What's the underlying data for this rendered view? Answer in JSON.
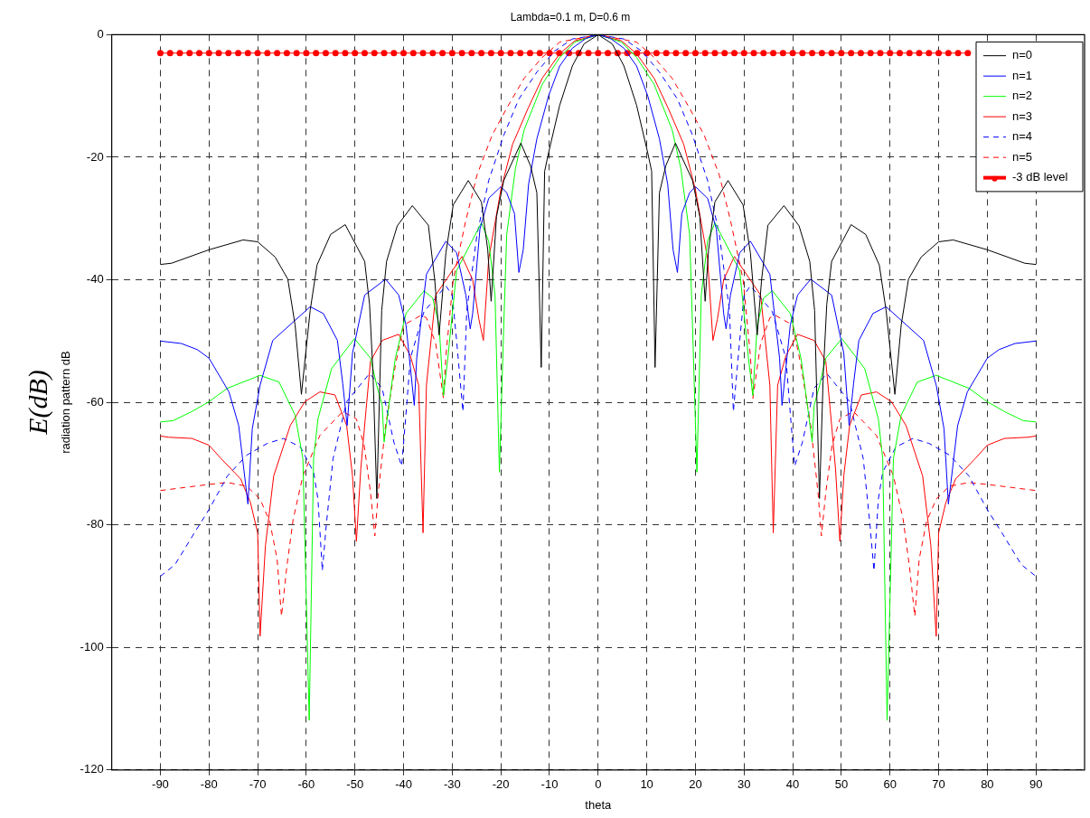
{
  "chart_data": {
    "type": "line",
    "title": "Lambda=0.1 m, D=0.6 m",
    "xlabel": "theta",
    "ylabel": "radiation pattern dB",
    "annotations": [
      "E(dB)"
    ],
    "xlim": [
      -100,
      100
    ],
    "ylim": [
      -120,
      0
    ],
    "xticks": [
      -90,
      -80,
      -70,
      -60,
      -50,
      -40,
      -30,
      -20,
      -10,
      0,
      10,
      20,
      30,
      40,
      50,
      60,
      70,
      80,
      90
    ],
    "yticks": [
      -120,
      -100,
      -80,
      -60,
      -40,
      -20,
      0
    ],
    "grid": true,
    "legend": "top right",
    "line_style": "solid",
    "marker": "none",
    "series": [
      {
        "name": "n=0",
        "color": "#000000",
        "x": [
          -90,
          -87.7,
          -80,
          -73,
          -70,
          -66.4,
          -63.8,
          -62.3,
          -61,
          -59.2,
          -57.8,
          -55,
          -52,
          -48,
          -47,
          -46.3,
          -45.5,
          -44.5,
          -43.5,
          -41.3,
          -38.2,
          -34.9,
          -33.6,
          -32.7,
          -31.3,
          -29.8,
          -26.7,
          -24,
          -22.7,
          -22,
          -20.9,
          -19.4,
          -15.9,
          -13.9,
          -12.6,
          -11.7,
          -11,
          -10.2,
          -7.9,
          -5.3,
          -2.9,
          0,
          2.9,
          5.3,
          7.9,
          10.2,
          11,
          11.7,
          12.6,
          13.9,
          15.9,
          19.4,
          20.9,
          22,
          22.7,
          24,
          26.7,
          29.8,
          31.3,
          32.7,
          33.6,
          34.9,
          38.2,
          41.3,
          43.5,
          44.5,
          45.5,
          46.3,
          47,
          48,
          52,
          55,
          57.8,
          59.2,
          61,
          62.3,
          63.8,
          66.4,
          70,
          73,
          80,
          87.7,
          90
        ],
        "values": [
          -37.5,
          -37.3,
          -35.1,
          -33.5,
          -33.8,
          -36.3,
          -39.9,
          -47.4,
          -58.7,
          -45,
          -37.6,
          -32.6,
          -31,
          -37,
          -44,
          -55,
          -75.7,
          -45,
          -37,
          -31.2,
          -27.9,
          -31.1,
          -40,
          -49,
          -35.6,
          -27.8,
          -23.8,
          -27.3,
          -35.1,
          -43.5,
          -29.7,
          -23.8,
          -17.7,
          -21.4,
          -25.8,
          -54.3,
          -22.3,
          -19.3,
          -11.5,
          -5.1,
          -1.5,
          0,
          -1.5,
          -5.1,
          -11.5,
          -19.3,
          -22.3,
          -54.3,
          -25.8,
          -21.4,
          -17.7,
          -23.8,
          -29.7,
          -43.5,
          -35.1,
          -27.3,
          -23.8,
          -27.8,
          -35.6,
          -49,
          -40,
          -31.1,
          -27.9,
          -31.2,
          -37,
          -45,
          -75.7,
          -55,
          -44,
          -37,
          -31,
          -32.6,
          -37.6,
          -45,
          -58.7,
          -47.4,
          -39.9,
          -36.3,
          -33.8,
          -33.5,
          -35.1,
          -37.3,
          -37.5
        ]
      },
      {
        "name": "n=1",
        "color": "#0000ff",
        "x": [
          -90,
          -85.7,
          -82.4,
          -80,
          -75.9,
          -73.9,
          -72,
          -71.1,
          -69.5,
          -66.9,
          -59.2,
          -56.5,
          -53.6,
          -52.5,
          -51.6,
          -50.5,
          -48,
          -43.7,
          -41,
          -39.5,
          -37.8,
          -37.3,
          -35.3,
          -31.3,
          -29.1,
          -27.2,
          -26.3,
          -25.8,
          -24.3,
          -22.5,
          -20,
          -18.8,
          -17.2,
          -16.3,
          -15.4,
          -14.3,
          -12.6,
          -10.2,
          -7.9,
          -5.3,
          -2.5,
          0,
          2.5,
          5.3,
          7.9,
          10.2,
          12.6,
          14.3,
          15.4,
          16.3,
          17.2,
          18.8,
          20,
          22.5,
          24.3,
          25.8,
          26.3,
          27.2,
          29.1,
          31.3,
          35.3,
          37.3,
          37.8,
          39.5,
          41,
          43.7,
          48,
          50.5,
          51.6,
          52.5,
          53.6,
          56.5,
          59.2,
          66.9,
          69.5,
          71.1,
          72,
          73.9,
          75.9,
          80,
          82.4,
          85.7,
          90
        ],
        "values": [
          -50,
          -50.4,
          -51.4,
          -52.8,
          -58.3,
          -63.8,
          -76.6,
          -64.3,
          -57.2,
          -49.9,
          -44.4,
          -45.5,
          -49.9,
          -57,
          -63.8,
          -52,
          -42.5,
          -39.9,
          -42.5,
          -47.4,
          -60.5,
          -52.8,
          -39.1,
          -33.7,
          -35.6,
          -42.5,
          -48,
          -45.5,
          -31.7,
          -26.7,
          -24.8,
          -25.8,
          -29.2,
          -38.8,
          -35.1,
          -24.4,
          -17,
          -10,
          -5.1,
          -2.2,
          -0.6,
          0,
          -0.6,
          -2.2,
          -5.1,
          -10,
          -17,
          -24.4,
          -35.1,
          -38.8,
          -29.2,
          -25.8,
          -24.8,
          -26.7,
          -31.7,
          -45.5,
          -48,
          -42.5,
          -35.6,
          -33.7,
          -39.1,
          -52.8,
          -60.5,
          -47.4,
          -42.5,
          -39.9,
          -42.5,
          -52,
          -63.8,
          -57,
          -49.9,
          -45.5,
          -44.4,
          -49.9,
          -57.2,
          -64.3,
          -76.6,
          -63.8,
          -58.3,
          -52.8,
          -51.4,
          -50.4,
          -50
        ]
      },
      {
        "name": "n=2",
        "color": "#00ff00",
        "x": [
          -90,
          -87.4,
          -83.5,
          -80,
          -76.2,
          -69.5,
          -65.6,
          -62.3,
          -60.7,
          -59.4,
          -58.5,
          -57.6,
          -54.8,
          -50.1,
          -46.8,
          -45.5,
          -44.4,
          -44,
          -42.6,
          -41.7,
          -39.5,
          -35.8,
          -34,
          -32.7,
          -31.8,
          -30.9,
          -29.1,
          -24,
          -22.5,
          -21.2,
          -20.3,
          -19.4,
          -18.8,
          -17,
          -15.2,
          -11.5,
          -7.9,
          -4.8,
          0,
          4.8,
          7.9,
          11.5,
          15.2,
          17,
          18.8,
          19.4,
          20.3,
          21.2,
          22.5,
          24,
          29.1,
          30.9,
          31.8,
          32.7,
          34,
          35.8,
          39.5,
          41.7,
          42.6,
          44,
          44.4,
          45.5,
          46.8,
          50.1,
          54.8,
          57.6,
          58.5,
          59.4,
          60.7,
          62.3,
          65.6,
          69.5,
          76.2,
          80,
          83.5,
          87.4,
          90
        ],
        "values": [
          -63.2,
          -63,
          -61.5,
          -59.9,
          -57.7,
          -55.6,
          -56.7,
          -62.1,
          -69.2,
          -111.9,
          -69.2,
          -62.7,
          -54.5,
          -49.6,
          -52.8,
          -57.3,
          -60.5,
          -66.5,
          -58,
          -52.8,
          -45.5,
          -41.8,
          -43,
          -47.4,
          -58.9,
          -52.8,
          -38.5,
          -30.7,
          -33.7,
          -42.5,
          -71.4,
          -47.4,
          -32.6,
          -21.8,
          -15.5,
          -8.1,
          -3.7,
          -1.2,
          0,
          -1.2,
          -3.7,
          -8.1,
          -15.5,
          -21.8,
          -32.6,
          -47.4,
          -71.4,
          -42.5,
          -33.7,
          -30.7,
          -38.5,
          -52.8,
          -58.9,
          -47.4,
          -43,
          -41.8,
          -45.5,
          -52.8,
          -58,
          -66.5,
          -60.5,
          -57.3,
          -52.8,
          -49.6,
          -54.5,
          -62.7,
          -69.2,
          -111.9,
          -69.2,
          -62.1,
          -56.7,
          -55.6,
          -57.7,
          -59.9,
          -61.5,
          -63,
          -63.2
        ]
      },
      {
        "name": "n=3",
        "color": "#ff0000",
        "x": [
          -90,
          -88.3,
          -83.5,
          -80,
          -77.5,
          -73.5,
          -71.5,
          -70,
          -69.5,
          -68.4,
          -66.7,
          -63.3,
          -60.3,
          -57.2,
          -54.1,
          -51.7,
          -50.5,
          -49.7,
          -48.8,
          -47.7,
          -46.8,
          -44.4,
          -41,
          -38.6,
          -36.9,
          -36,
          -35.3,
          -33.4,
          -28,
          -25.8,
          -24.5,
          -23.6,
          -22.5,
          -20,
          -17.6,
          -14.4,
          -11.5,
          -7.9,
          -4.8,
          0,
          4.8,
          7.9,
          11.5,
          14.4,
          17.6,
          20,
          22.5,
          23.6,
          24.5,
          25.8,
          28,
          33.4,
          35.3,
          36,
          36.9,
          38.6,
          41,
          44.4,
          46.8,
          47.7,
          48.8,
          49.7,
          50.5,
          51.7,
          54.1,
          57.2,
          60.3,
          63.3,
          66.7,
          68.4,
          69.5,
          70,
          71.5,
          73.5,
          77.5,
          80,
          83.5,
          88.3,
          90
        ],
        "values": [
          -65.5,
          -65.7,
          -65.9,
          -67,
          -69.2,
          -72.5,
          -76.3,
          -81.3,
          -98.2,
          -83.4,
          -72,
          -63.8,
          -59.9,
          -58.3,
          -58.8,
          -63.8,
          -72,
          -82.7,
          -70.9,
          -61.1,
          -53.3,
          -49.9,
          -48.9,
          -52.4,
          -57.2,
          -81.3,
          -57.2,
          -42.5,
          -36.2,
          -40,
          -46.5,
          -49.9,
          -36.6,
          -25.3,
          -17.9,
          -12,
          -7.1,
          -3.1,
          -1,
          0,
          -1,
          -3.1,
          -7.1,
          -12,
          -17.9,
          -25.3,
          -36.6,
          -49.9,
          -46.5,
          -40,
          -36.2,
          -42.5,
          -57.2,
          -81.3,
          -57.2,
          -52.4,
          -48.9,
          -49.9,
          -53.3,
          -61.1,
          -70.9,
          -82.7,
          -72,
          -63.8,
          -58.8,
          -58.3,
          -59.9,
          -63.8,
          -72,
          -83.4,
          -98.2,
          -81.3,
          -76.3,
          -72.5,
          -69.2,
          -67,
          -65.9,
          -65.7,
          -65.5
        ]
      },
      {
        "name": "n=4",
        "color": "#0000ff",
        "line_style": "dashed",
        "x": [
          -90,
          -87,
          -83,
          -80,
          -76.2,
          -72.2,
          -68,
          -64.7,
          -61.2,
          -58.5,
          -57.6,
          -56.7,
          -55.9,
          -54.5,
          -51.7,
          -47,
          -44.4,
          -42,
          -40.4,
          -39.7,
          -38.6,
          -35.8,
          -31.3,
          -30,
          -29.1,
          -27.8,
          -27,
          -24.9,
          -22.5,
          -19.4,
          -16.3,
          -12.6,
          -9,
          -5.3,
          0,
          5.3,
          9,
          12.6,
          16.3,
          19.4,
          22.5,
          24.9,
          27,
          27.8,
          29.1,
          30,
          31.3,
          35.8,
          38.6,
          39.7,
          40.4,
          42,
          44.4,
          47,
          51.7,
          54.5,
          55.9,
          56.7,
          57.6,
          58.5,
          61.2,
          64.7,
          68,
          72.2,
          76.2,
          80,
          83,
          87,
          90
        ],
        "values": [
          -88.4,
          -86.5,
          -81.3,
          -77.5,
          -72,
          -68.6,
          -66.7,
          -65.9,
          -67.3,
          -71.4,
          -75.8,
          -87.5,
          -80.1,
          -69.2,
          -59.9,
          -55.3,
          -57.7,
          -66.5,
          -70.4,
          -63.8,
          -52.8,
          -45.2,
          -41,
          -42.5,
          -49.9,
          -61.5,
          -45,
          -32.6,
          -23.8,
          -16.4,
          -10.5,
          -6.1,
          -2.7,
          -0.7,
          0,
          -0.7,
          -2.7,
          -6.1,
          -10.5,
          -16.4,
          -23.8,
          -32.6,
          -45,
          -61.5,
          -49.9,
          -42.5,
          -41,
          -45.2,
          -52.8,
          -63.8,
          -70.4,
          -66.5,
          -57.7,
          -55.3,
          -59.9,
          -69.2,
          -80.1,
          -87.5,
          -75.8,
          -71.4,
          -67.3,
          -65.9,
          -66.7,
          -68.6,
          -72,
          -77.5,
          -81.3,
          -86.5,
          -88.4
        ]
      },
      {
        "name": "n=5",
        "color": "#ff0000",
        "line_style": "dashed",
        "x": [
          -90,
          -85,
          -80,
          -76.2,
          -72.2,
          -69.5,
          -67.5,
          -66,
          -65.1,
          -64,
          -62.7,
          -60.7,
          -57.2,
          -52.5,
          -49.7,
          -48.1,
          -46.8,
          -45.9,
          -45.2,
          -43.7,
          -41.7,
          -40,
          -36.4,
          -35.3,
          -33.4,
          -31.8,
          -31.3,
          -29.8,
          -27.2,
          -24.9,
          -21.8,
          -18.8,
          -15.2,
          -11.5,
          -7.9,
          0,
          7.9,
          11.5,
          15.2,
          18.8,
          21.8,
          24.9,
          27.2,
          29.8,
          31.3,
          31.8,
          33.4,
          35.3,
          36.4,
          40,
          41.7,
          43.7,
          45.2,
          45.9,
          46.8,
          48.1,
          49.7,
          52.5,
          57.2,
          60.7,
          62.7,
          64,
          65.1,
          66,
          67.5,
          69.5,
          72.2,
          76.2,
          80,
          85,
          90
        ],
        "values": [
          -74.4,
          -73.9,
          -73.4,
          -73.1,
          -73.7,
          -75.8,
          -79.5,
          -85.6,
          -94.9,
          -86.8,
          -79.1,
          -72,
          -65.4,
          -61.5,
          -62.7,
          -67,
          -74.7,
          -81.8,
          -74.7,
          -63.8,
          -54,
          -47.4,
          -45.8,
          -46.2,
          -50.4,
          -59.4,
          -52.4,
          -40,
          -30.3,
          -22.9,
          -16.4,
          -12,
          -7.1,
          -3.7,
          -1.2,
          0,
          -1.2,
          -3.7,
          -7.1,
          -12,
          -16.4,
          -22.9,
          -30.3,
          -40,
          -52.4,
          -59.4,
          -50.4,
          -46.2,
          -45.8,
          -47.4,
          -54,
          -63.8,
          -74.7,
          -81.8,
          -74.7,
          -67,
          -62.7,
          -61.5,
          -65.4,
          -72,
          -79.1,
          -86.8,
          -94.9,
          -85.6,
          -79.5,
          -75.8,
          -73.7,
          -73.1,
          -73.4,
          -73.9,
          -74.4
        ]
      },
      {
        "name": "-3 dB level",
        "color": "#ff0000",
        "marker": "circle",
        "x": [
          -90,
          -88,
          -86,
          -84,
          -82,
          -80,
          -78,
          -76,
          -74,
          -72,
          -70,
          -68,
          -66,
          -64,
          -62,
          -60,
          -58,
          -56,
          -54,
          -52,
          -50,
          -48,
          -46,
          -44,
          -42,
          -40,
          -38,
          -36,
          -34,
          -32,
          -30,
          -28,
          -26,
          -24,
          -22,
          -20,
          -18,
          -16,
          -14,
          -12,
          -10,
          -8,
          -6,
          -4,
          -2,
          0,
          2,
          4,
          6,
          8,
          10,
          12,
          14,
          16,
          18,
          20,
          22,
          24,
          26,
          28,
          30,
          32,
          34,
          36,
          38,
          40,
          42,
          44,
          46,
          48,
          50,
          52,
          54,
          56,
          58,
          60,
          62,
          64,
          66,
          68,
          70,
          72,
          74,
          76
        ],
        "values": [
          -3,
          -3,
          -3,
          -3,
          -3,
          -3,
          -3,
          -3,
          -3,
          -3,
          -3,
          -3,
          -3,
          -3,
          -3,
          -3,
          -3,
          -3,
          -3,
          -3,
          -3,
          -3,
          -3,
          -3,
          -3,
          -3,
          -3,
          -3,
          -3,
          -3,
          -3,
          -3,
          -3,
          -3,
          -3,
          -3,
          -3,
          -3,
          -3,
          -3,
          -3,
          -3,
          -3,
          -3,
          -3,
          -3,
          -3,
          -3,
          -3,
          -3,
          -3,
          -3,
          -3,
          -3,
          -3,
          -3,
          -3,
          -3,
          -3,
          -3,
          -3,
          -3,
          -3,
          -3,
          -3,
          -3,
          -3,
          -3,
          -3,
          -3,
          -3,
          -3,
          -3,
          -3,
          -3,
          -3,
          -3,
          -3,
          -3,
          -3,
          -3,
          -3,
          -3,
          -3
        ]
      }
    ]
  }
}
